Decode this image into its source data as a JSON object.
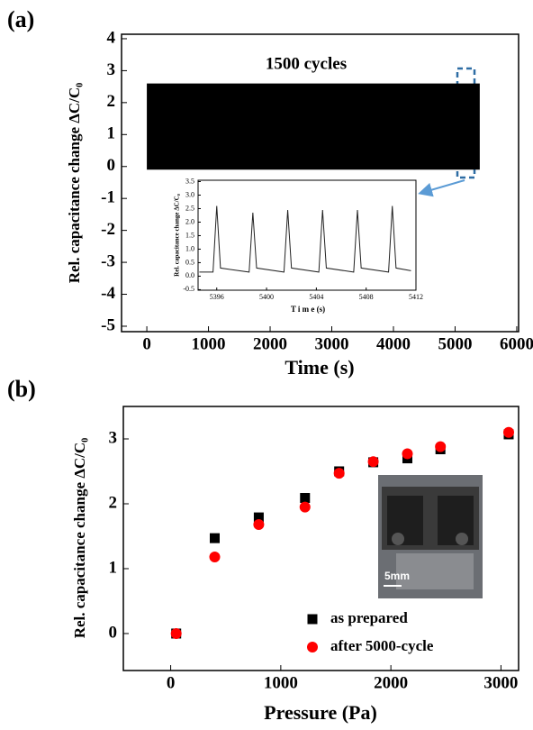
{
  "chart_data": [
    {
      "type": "band",
      "panel_label": "(a)",
      "title": "1500 cycles",
      "x_label": "Time (s)",
      "y_label": "Rel. capacitance change  ΔC/C₀",
      "x": [
        0,
        5400
      ],
      "upper": [
        2.6,
        2.6
      ],
      "lower": [
        -0.1,
        -0.1
      ],
      "color": "#000000",
      "xlim": [
        -410,
        6030
      ],
      "ylim": [
        -5.17,
        4.14
      ],
      "xticks": [
        0,
        1000,
        2000,
        3000,
        4000,
        5000,
        6000
      ],
      "yticks": [
        -5,
        -4,
        -3,
        -2,
        -1,
        0,
        1,
        2,
        3,
        4
      ]
    },
    {
      "type": "line",
      "x_label": "T i m e (s)",
      "y_label": "Rel. capacitance change  ΔC/C₀",
      "x": [
        5394.6,
        5395.7,
        5396.0,
        5396.3,
        5398.6,
        5398.9,
        5399.2,
        5401.4,
        5401.7,
        5402.0,
        5404.2,
        5404.5,
        5404.8,
        5407.0,
        5407.3,
        5407.6,
        5409.8,
        5410.1,
        5410.4,
        5411.6
      ],
      "values": [
        0.15,
        0.15,
        2.6,
        0.3,
        0.15,
        2.35,
        0.3,
        0.15,
        2.45,
        0.3,
        0.15,
        2.45,
        0.3,
        0.15,
        2.45,
        0.3,
        0.15,
        2.6,
        0.3,
        0.2
      ],
      "color": "#222222",
      "xlim": [
        5394.5,
        5412
      ],
      "ylim": [
        -0.52,
        3.55
      ],
      "xticks": [
        5396,
        5400,
        5404,
        5408,
        5412
      ],
      "yticks": [
        {
          "value": -0.5,
          "label": "-0.5"
        },
        {
          "value": 0,
          "label": "0.0"
        },
        {
          "value": 0.5,
          "label": "0.5"
        },
        {
          "value": 1,
          "label": "1.0"
        },
        {
          "value": 1.5,
          "label": "1.5"
        },
        {
          "value": 2,
          "label": "2.0"
        },
        {
          "value": 2.5,
          "label": "2.5"
        },
        {
          "value": 3,
          "label": "3.0"
        },
        {
          "value": 3.5,
          "label": "3.5"
        }
      ]
    },
    {
      "type": "scatter",
      "panel_label": "(b)",
      "x_label": "Pressure (Pa)",
      "y_label": "Rel. capacitance change  ΔC/C₀",
      "photo_label": "5mm",
      "legend": "lower right",
      "x": [
        50,
        400,
        800,
        1220,
        1530,
        1840,
        2150,
        2450,
        3070
      ],
      "series": [
        {
          "name": "as prepared",
          "color": "#000000",
          "marker": "square",
          "values": [
            0,
            1.47,
            1.79,
            2.09,
            2.5,
            2.64,
            2.7,
            2.84,
            3.07
          ]
        },
        {
          "name": "after 5000-cycle",
          "color": "#ff0000",
          "marker": "circle",
          "values": [
            0,
            1.18,
            1.68,
            1.95,
            2.47,
            2.65,
            2.77,
            2.88,
            3.1
          ]
        }
      ],
      "xlim": [
        -430,
        3160
      ],
      "ylim": [
        -0.57,
        3.5
      ],
      "xticks": [
        0,
        1000,
        2000,
        3000
      ],
      "yticks": [
        0,
        1,
        2,
        3
      ]
    }
  ]
}
